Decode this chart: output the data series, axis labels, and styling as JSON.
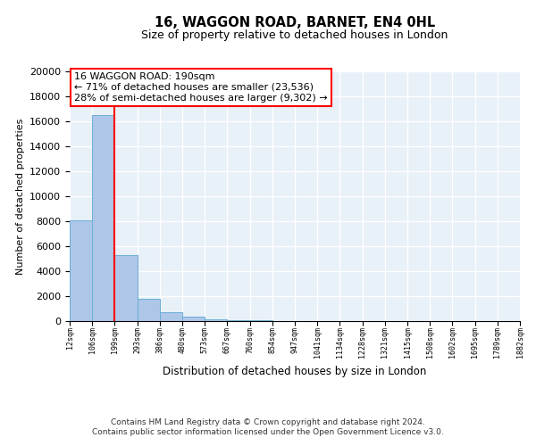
{
  "title": "16, WAGGON ROAD, BARNET, EN4 0HL",
  "subtitle": "Size of property relative to detached houses in London",
  "xlabel": "Distribution of detached houses by size in London",
  "ylabel": "Number of detached properties",
  "bar_values": [
    8100,
    16500,
    5300,
    1800,
    700,
    350,
    150,
    100,
    50,
    0,
    0,
    0,
    0,
    0,
    0,
    0,
    0,
    0,
    0,
    0
  ],
  "bar_labels": [
    "12sqm",
    "106sqm",
    "199sqm",
    "293sqm",
    "386sqm",
    "480sqm",
    "573sqm",
    "667sqm",
    "760sqm",
    "854sqm",
    "947sqm",
    "1041sqm",
    "1134sqm",
    "1228sqm",
    "1321sqm",
    "1415sqm",
    "1508sqm",
    "1602sqm",
    "1695sqm",
    "1789sqm",
    "1882sqm"
  ],
  "bar_color": "#aec6e8",
  "bar_edge_color": "#6aafd6",
  "vline_x": 2,
  "vline_color": "red",
  "ylim": [
    0,
    20000
  ],
  "yticks": [
    0,
    2000,
    4000,
    6000,
    8000,
    10000,
    12000,
    14000,
    16000,
    18000,
    20000
  ],
  "annotation_title": "16 WAGGON ROAD: 190sqm",
  "annotation_line1": "← 71% of detached houses are smaller (23,536)",
  "annotation_line2": "28% of semi-detached houses are larger (9,302) →",
  "annotation_box_color": "#ffffff",
  "annotation_box_edge": "red",
  "footer1": "Contains HM Land Registry data © Crown copyright and database right 2024.",
  "footer2": "Contains public sector information licensed under the Open Government Licence v3.0.",
  "bg_color": "#e8f0f8",
  "grid_color": "#ffffff",
  "fig_bg": "#ffffff"
}
